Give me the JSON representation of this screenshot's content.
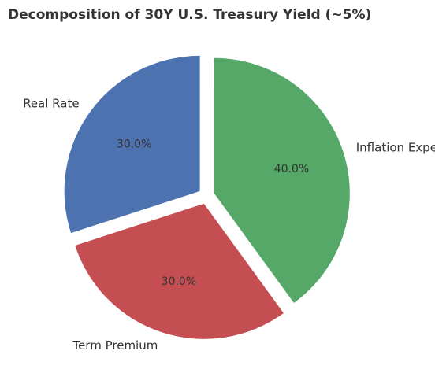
{
  "chart_data": {
    "type": "pie",
    "title": "Decomposition of 30Y U.S. Treasury Yield (~5%)",
    "slices": [
      {
        "label": "Real Rate",
        "value": 30.0,
        "pct_label": "30.0%",
        "color": "#4c72b0"
      },
      {
        "label": "Term Premium",
        "value": 30.0,
        "pct_label": "30.0%",
        "color": "#c44e52"
      },
      {
        "label": "Inflation Expectations",
        "value": 40.0,
        "pct_label": "40.0%",
        "color": "#55a868"
      }
    ],
    "start_angle": "90 degrees (top), counter-clockwise",
    "exploded": true,
    "legend": "none"
  }
}
